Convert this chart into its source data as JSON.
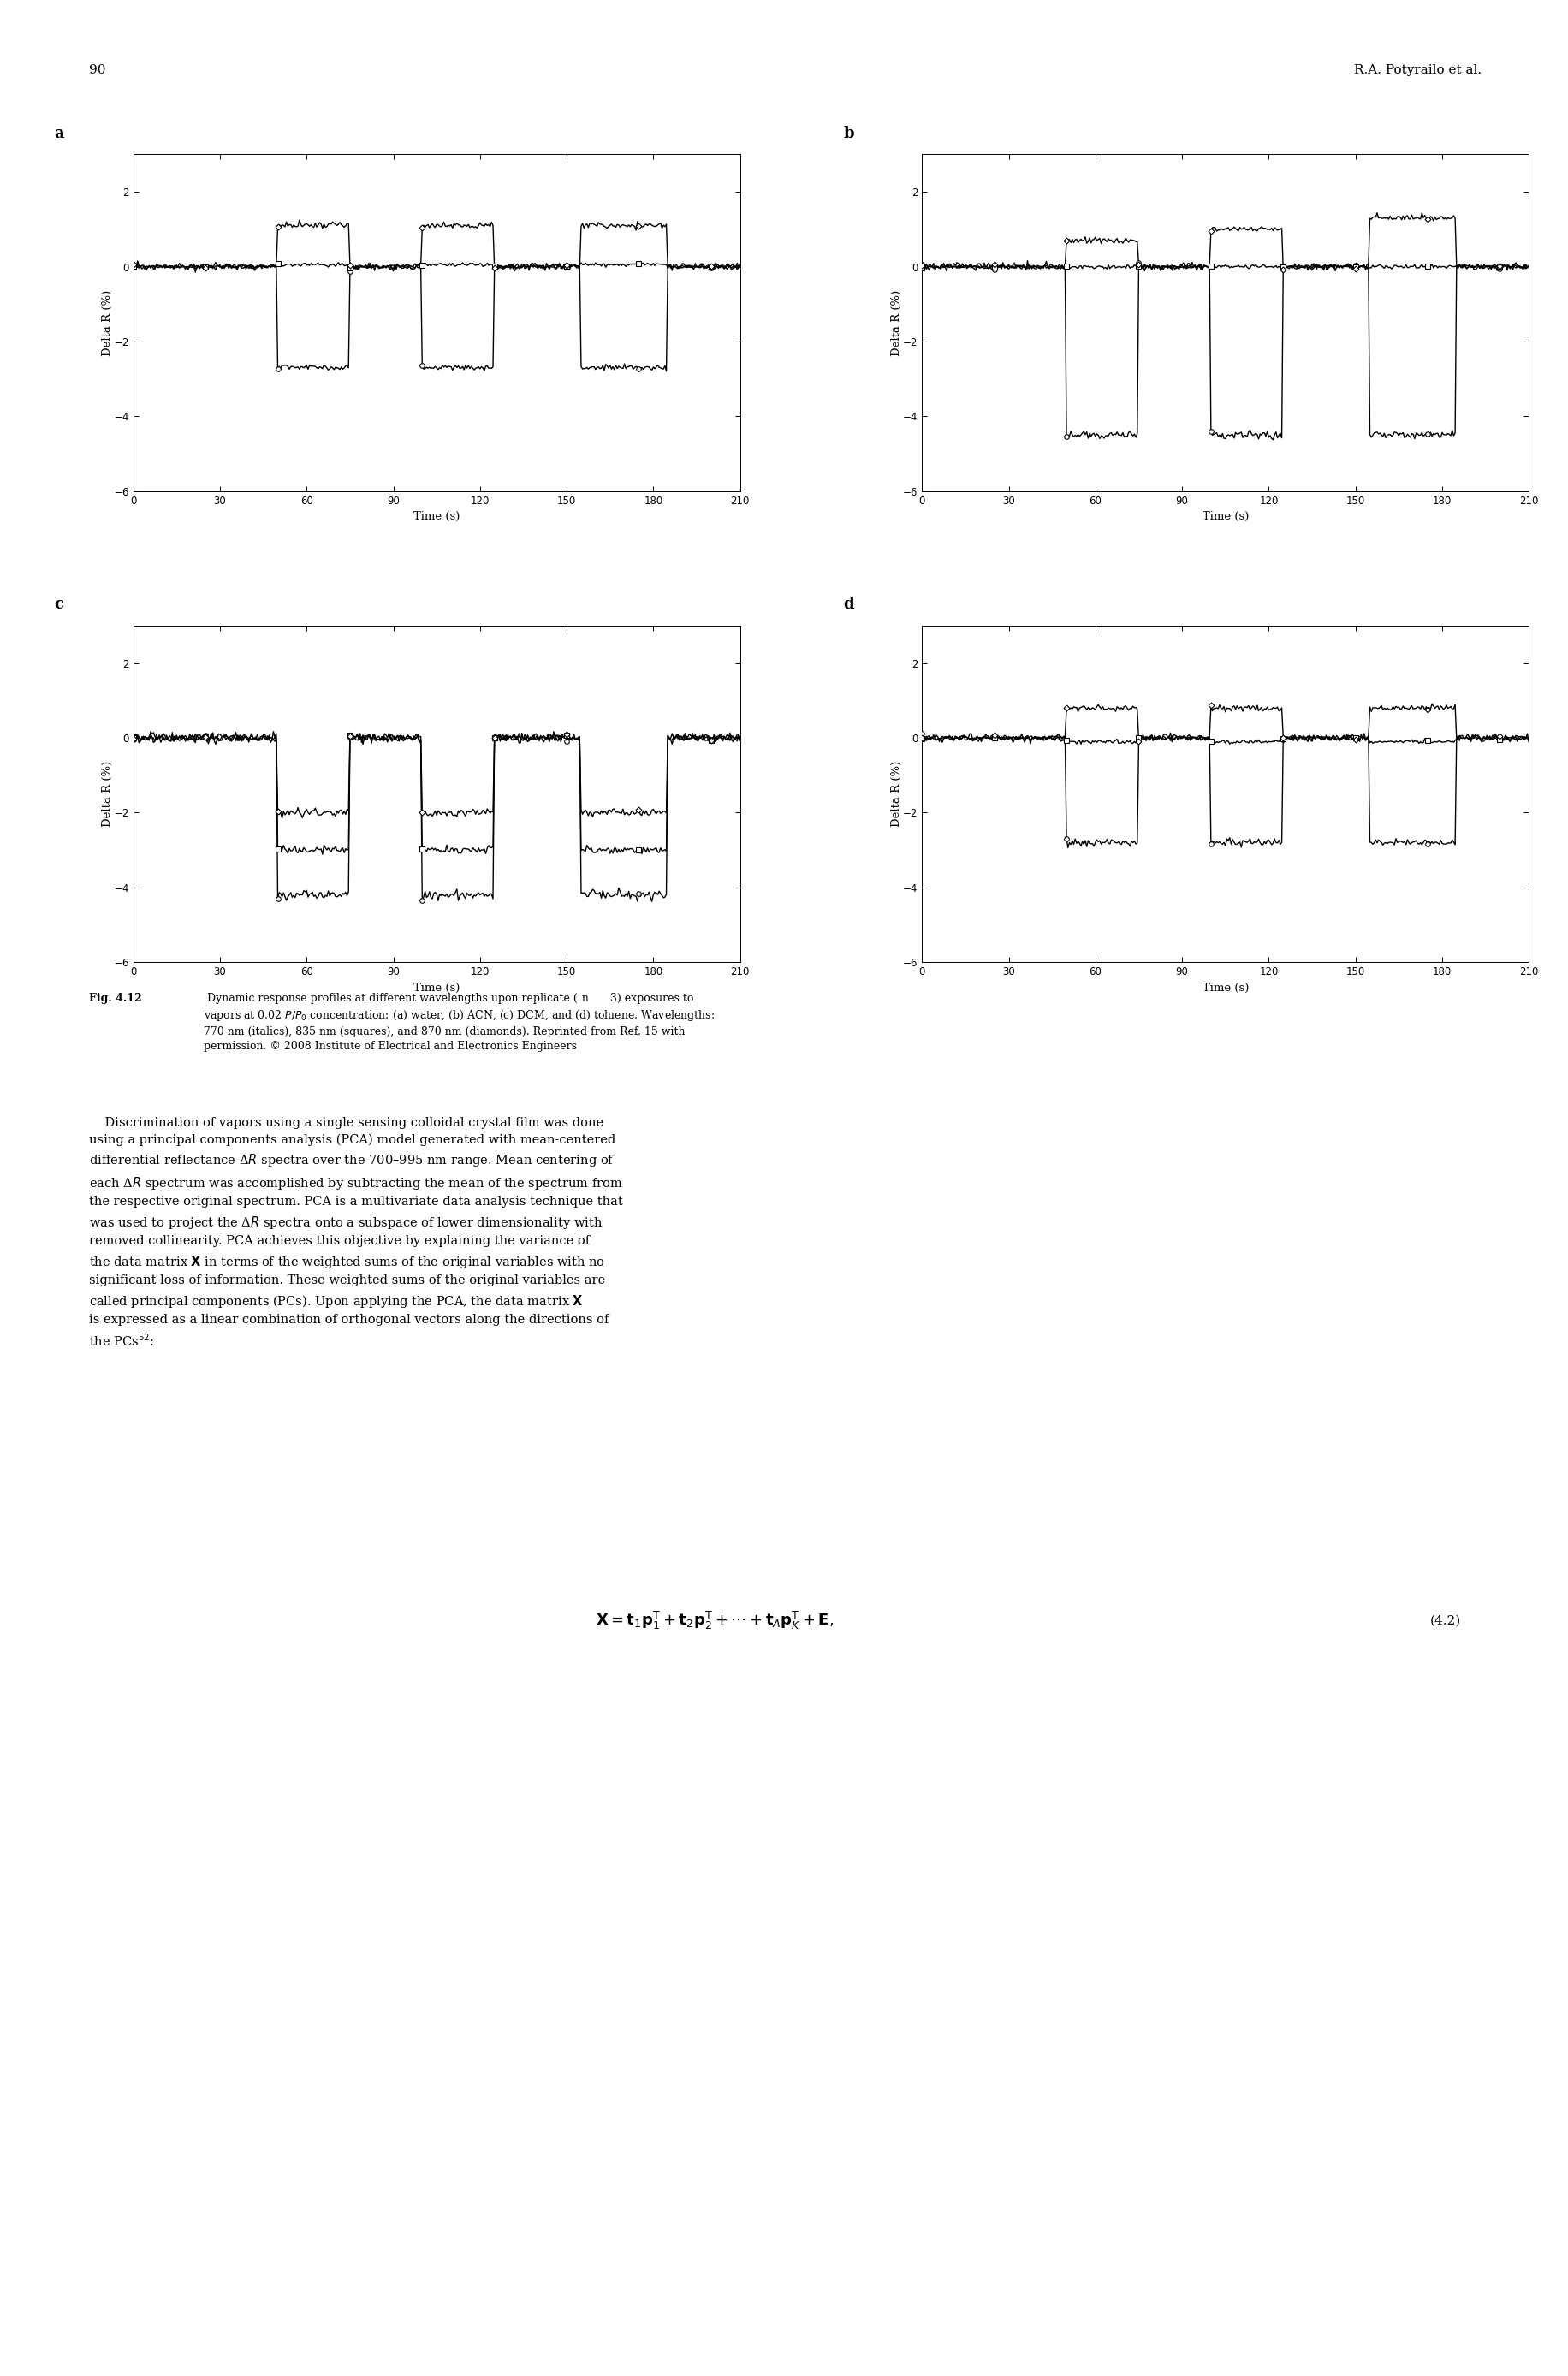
{
  "page_number": "90",
  "header_right": "R.A. Potyrailo et al.",
  "panel_labels": [
    "a",
    "b",
    "c",
    "d"
  ],
  "xlabel": "Time (s)",
  "ylabel": "Delta R (%)",
  "xlim": [
    0,
    210
  ],
  "ylim": [
    -6,
    3
  ],
  "xticks": [
    0,
    30,
    60,
    90,
    120,
    150,
    180,
    210
  ],
  "yticks": [
    -6,
    -4,
    -2,
    0,
    2
  ],
  "linewidth": 1.0,
  "marker_size": 4.0,
  "marker_interval": 25,
  "background_color": "#ffffff",
  "caption_bold_prefix": "Fig. 4.12",
  "caption_rest": " Dynamic response profiles at different wavelengths upon replicate (n   3) exposures to vapors at 0.02 P/P₀ concentration: (a) water, (b) ACN, (c) DCM, and (d) toluene. Wavelengths: 770 nm (circles), 835 nm (squares), and 870 nm (diamonds). Reprinted from Ref. 15 with permission. © 2008 Institute of Electrical and Electronics Engineers"
}
